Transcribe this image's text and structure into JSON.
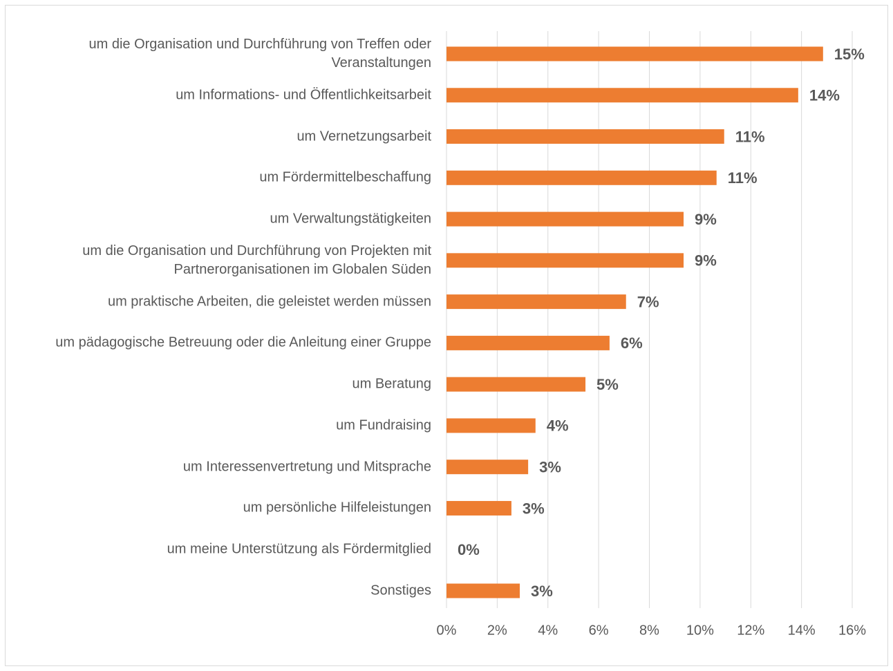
{
  "chart_data": {
    "type": "bar",
    "orientation": "horizontal",
    "categories": [
      "um die Organisation und Durchführung von Treffen oder Veranstaltungen",
      "um Informations- und Öffentlichkeitsarbeit",
      "um Vernetzungsarbeit",
      "um Fördermittelbeschaffung",
      "um Verwaltungstätigkeiten",
      "um die Organisation und Durchführung von Projekten mit Partnerorganisationen im Globalen Süden",
      "um praktische Arbeiten, die geleistet werden müssen",
      "um pädagogische Betreuung oder die Anleitung einer Gruppe",
      "um Beratung",
      "um Fundraising",
      "um Interessenvertretung und Mitsprache",
      "um persönliche Hilfeleistungen",
      "um meine Unterstützung als Fördermitglied",
      "Sonstiges"
    ],
    "values": [
      14.85,
      13.87,
      10.95,
      10.65,
      9.35,
      9.35,
      7.08,
      6.43,
      5.48,
      3.51,
      3.22,
      2.56,
      0,
      2.89
    ],
    "value_labels": [
      "15%",
      "14%",
      "11%",
      "11%",
      "9%",
      "9%",
      "7%",
      "6%",
      "5%",
      "4%",
      "3%",
      "3%",
      "0%",
      "3%"
    ],
    "color": "#ed7d31",
    "xlim": [
      0,
      16
    ],
    "xticks": [
      {
        "value": 0,
        "label": "0%"
      },
      {
        "value": 2,
        "label": "2%"
      },
      {
        "value": 4,
        "label": "4%"
      },
      {
        "value": 6,
        "label": "6%"
      },
      {
        "value": 8,
        "label": "8%"
      },
      {
        "value": 10,
        "label": "10%"
      },
      {
        "value": 12,
        "label": "12%"
      },
      {
        "value": 14,
        "label": "14%"
      },
      {
        "value": 16,
        "label": "16%"
      }
    ],
    "grid": true
  }
}
